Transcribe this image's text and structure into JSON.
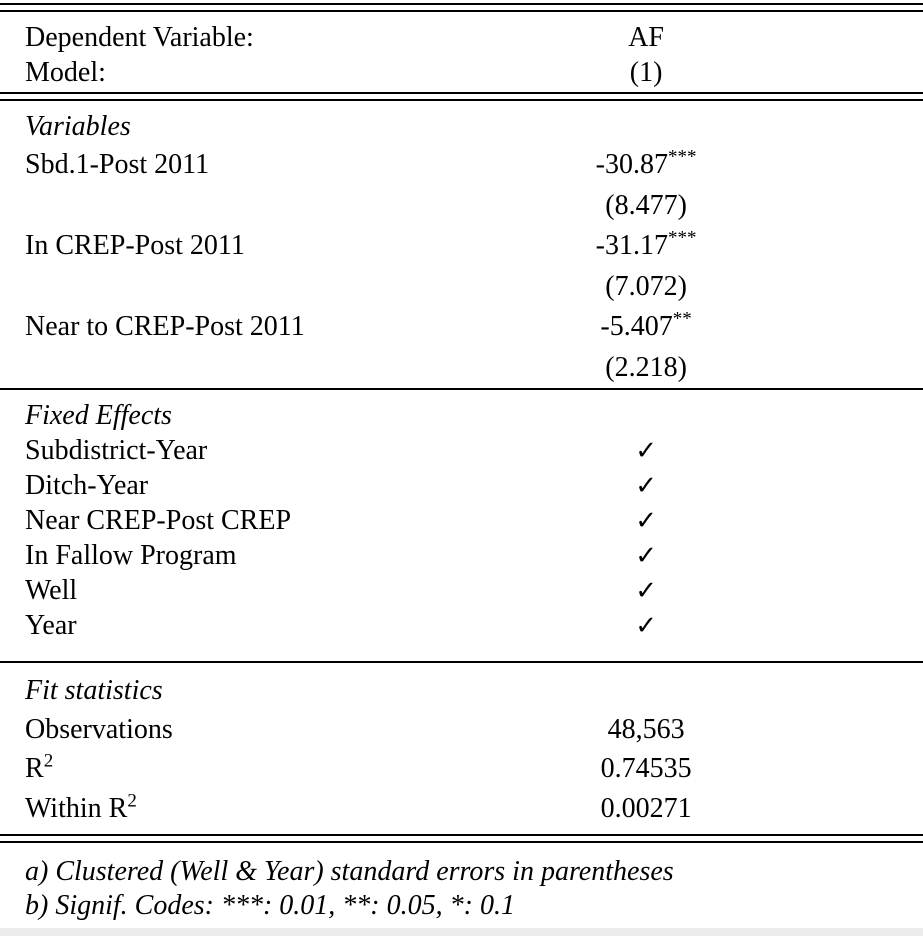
{
  "table": {
    "header": {
      "rows": [
        {
          "label": "Dependent Variable:",
          "value": "AF"
        },
        {
          "label": "Model:",
          "value": "(1)"
        }
      ]
    },
    "variables": {
      "section_title": "Variables",
      "rows": [
        {
          "label": "Sbd.1-Post 2011",
          "coef": "-30.87",
          "stars": "***",
          "se": "(8.477)"
        },
        {
          "label": "In CREP-Post 2011",
          "coef": "-31.17",
          "stars": "***",
          "se": "(7.072)"
        },
        {
          "label": "Near to CREP-Post 2011",
          "coef": "-5.407",
          "stars": "**",
          "se": "(2.218)"
        }
      ]
    },
    "fixed_effects": {
      "section_title": "Fixed Effects",
      "check_glyph": "✓",
      "rows": [
        {
          "label": "Subdistrict-Year"
        },
        {
          "label": "Ditch-Year"
        },
        {
          "label": "Near CREP-Post CREP"
        },
        {
          "label": "In Fallow Program"
        },
        {
          "label": "Well"
        },
        {
          "label": "Year"
        }
      ]
    },
    "fit_statistics": {
      "section_title": "Fit statistics",
      "rows": [
        {
          "label": "Observations",
          "sup": "",
          "value": "48,563"
        },
        {
          "label": "R",
          "sup": "2",
          "value": "0.74535"
        },
        {
          "label": "Within R",
          "sup": "2",
          "value": "0.00271"
        }
      ]
    },
    "footnotes": [
      "a) Clustered (Well & Year) standard errors in parentheses",
      "b) Signif. Codes: ***: 0.01, **: 0.05, *: 0.1"
    ]
  }
}
